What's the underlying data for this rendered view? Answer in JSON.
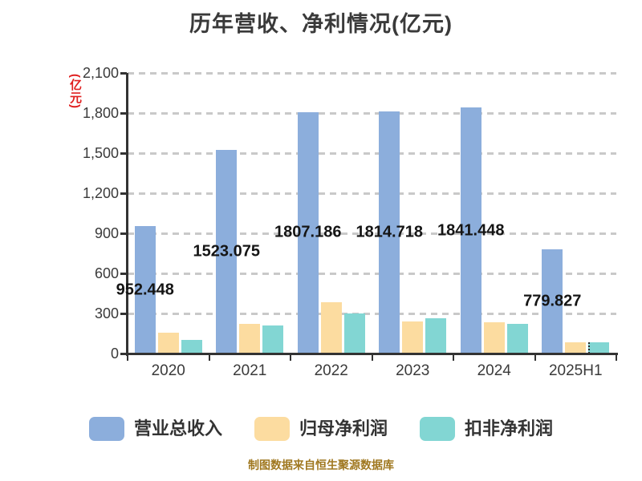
{
  "title": "历年营收、净利情况(亿元)",
  "y_axis": {
    "unit_label": "(亿元)",
    "unit_color": "#e02020",
    "tick_labels": [
      "2,100",
      "1,800",
      "1,500",
      "1,200",
      "900",
      "600",
      "300",
      "0"
    ]
  },
  "x_axis": {
    "categories": [
      "2020",
      "2021",
      "2022",
      "2023",
      "2024",
      "2025H1"
    ]
  },
  "legend": [
    {
      "label": "营业总收入",
      "color": "#8caedc"
    },
    {
      "label": "归母净利润",
      "color": "#fcdca0"
    },
    {
      "label": "扣非净利润",
      "color": "#82d6d3"
    }
  ],
  "footer": "制图数据来自恒生聚源数据库",
  "colors": {
    "revenue_bar": "#8caedc",
    "net_profit_bar": "#fcdca0",
    "deducted_net_profit_bar": "#82d6d3",
    "gridline": "#c9c9c9",
    "axis": "#333333",
    "title_text": "#3a3a3a",
    "value_label_text": "#151515",
    "footer_text": "#a07820"
  },
  "chart_data": {
    "type": "bar",
    "title": "历年营收、净利情况(亿元)",
    "categories": [
      "2020",
      "2021",
      "2022",
      "2023",
      "2024",
      "2025H1"
    ],
    "series": [
      {
        "name": "营业总收入",
        "color": "#8caedc",
        "values": [
          952.448,
          1523.075,
          1807.186,
          1814.718,
          1841.448,
          779.827
        ],
        "data_labels": [
          "952.448",
          "1523.075",
          "1807.186",
          "1814.718",
          "1841.448",
          "779.827"
        ]
      },
      {
        "name": "归母净利润",
        "color": "#fcdca0",
        "values": [
          159,
          223,
          385,
          243,
          237,
          87
        ],
        "values_estimated_from_pixels": true
      },
      {
        "name": "扣非净利润",
        "color": "#82d6d3",
        "values": [
          105,
          213,
          300,
          263,
          225,
          85
        ],
        "values_estimated_from_pixels": true
      }
    ],
    "ylim": [
      0,
      2100
    ],
    "ytick_step": 300,
    "grid": "horizontal-dashed",
    "legend_position": "bottom",
    "value_label_position": "center-of-revenue-bar",
    "y_axis_unit": "亿元",
    "footer": "制图数据来自恒生聚源数据库"
  }
}
